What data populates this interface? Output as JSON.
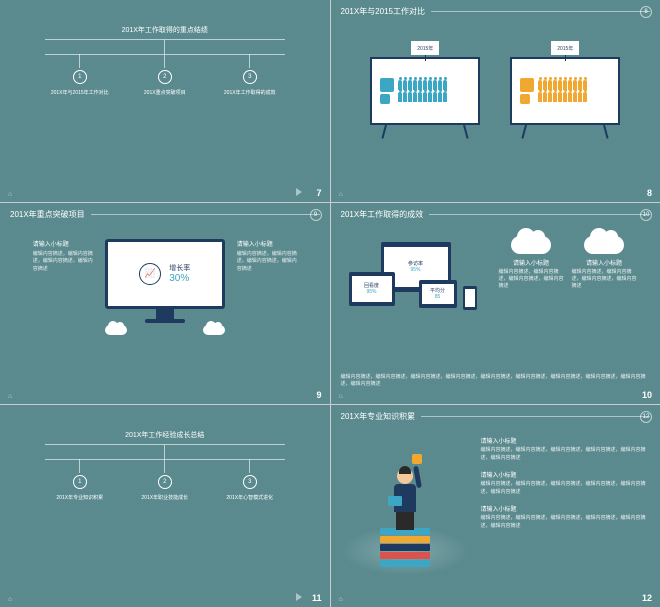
{
  "colors": {
    "bg": "#5a8a8e",
    "navy": "#1e3a5f",
    "blue": "#3ba7c4",
    "yellow": "#f0a830",
    "white": "#ffffff"
  },
  "slide7": {
    "page": "7",
    "title": "201X年工作取得的重点结绩",
    "branches": [
      {
        "num": "1",
        "label": "201X年与2015年工作对比"
      },
      {
        "num": "2",
        "label": "201X重点突破项目"
      },
      {
        "num": "3",
        "label": "201X年工作取得的成效"
      }
    ]
  },
  "slide8": {
    "page": "8",
    "pageTop": "8",
    "title": "201X年与2015工作对比",
    "board1": {
      "flag": "2015年"
    },
    "board2": {
      "flag": "2015年"
    }
  },
  "slide9": {
    "page": "9",
    "pageTop": "9",
    "title": "201X年重点突破项目",
    "left": {
      "title": "请输入小标题",
      "text": "编辑内容摘述，编辑内容摘述，编辑内容摘述，编辑内容摘述"
    },
    "right": {
      "title": "请输入小标题",
      "text": "编辑内容摘述，编辑内容摘述，编辑内容摘述，编辑内容摘述"
    },
    "metric": {
      "label": "增长率",
      "value": "30%"
    }
  },
  "slide10": {
    "page": "10",
    "pageTop": "10",
    "title": "201X年工作取得的成效",
    "dev1": {
      "label": "参访率",
      "value": "95%"
    },
    "dev2": {
      "label": "回看度",
      "value": "95%"
    },
    "dev3": {
      "label": "平均分",
      "value": "85"
    },
    "cloud1": {
      "title": "请输入小标题",
      "text": "编辑内容摘述，编辑内容摘述，编辑内容摘述，编辑内容摘述"
    },
    "cloud2": {
      "title": "请输入小标题",
      "text": "编辑内容摘述，编辑内容摘述，编辑内容摘述，编辑内容摘述"
    },
    "bottom": "编辑内容摘述，编辑内容摘述，编辑内容摘述，编辑内容摘述，编辑内容摘述，编辑内容摘述，编辑内容摘述，编辑内容摘述，编辑内容摘述，编辑内容摘述"
  },
  "slide11": {
    "page": "11",
    "title": "201X年工作经验成长总结",
    "branches": [
      {
        "num": "1",
        "label": "201X年专业知识积累"
      },
      {
        "num": "2",
        "label": "201X年职业技能成长"
      },
      {
        "num": "3",
        "label": "201X年心智模式进化"
      }
    ]
  },
  "slide12": {
    "page": "12",
    "pageTop": "12",
    "title": "201X年专业知识积累",
    "blocks": [
      {
        "title": "请输入小标题",
        "text": "编辑内容摘述，编辑内容摘述，编辑内容摘述，编辑内容摘述，编辑内容摘述，编辑内容摘述"
      },
      {
        "title": "请输入小标题",
        "text": "编辑内容摘述，编辑内容摘述，编辑内容摘述，编辑内容摘述，编辑内容摘述，编辑内容摘述"
      },
      {
        "title": "请输入小标题",
        "text": "编辑内容摘述，编辑内容摘述，编辑内容摘述，编辑内容摘述，编辑内容摘述，编辑内容摘述"
      }
    ],
    "bookColors": [
      "#3ba7c4",
      "#f0a830",
      "#1e3a5f",
      "#d9534f",
      "#3ba7c4"
    ]
  }
}
